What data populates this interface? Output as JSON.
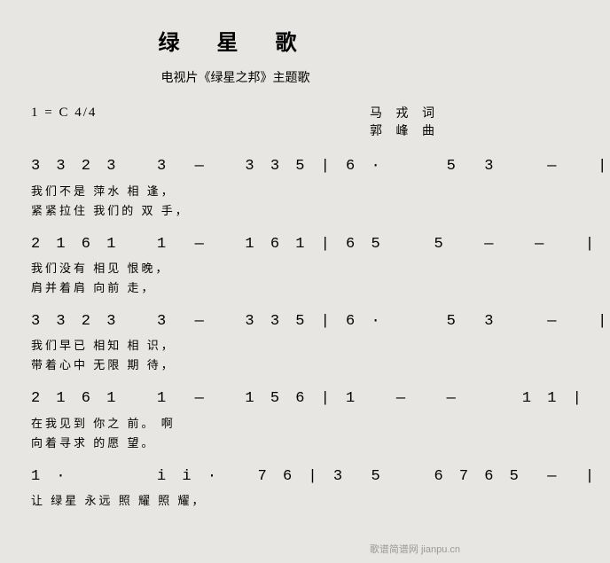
{
  "title": "绿 星 歌",
  "subtitle": "电视片《绿星之邦》主题歌",
  "keySig": "1 = C 4/4",
  "credits": {
    "lyricist": "马 戎 词",
    "composer": "郭 峰 曲"
  },
  "lines": [
    {
      "notation": "3 3 2 3   3  ―   3 3 5 | 6 ·     5  3    ―   |",
      "lyric1": "我们不是              萍水      相          逢，",
      "lyric2": "紧紧拉住              我们的    双          手，"
    },
    {
      "notation": "2 1 6 1   1  ―   1 6 1 | 6 5    5   ―   ―   |",
      "lyric1": "我们没有              相见      恨晚，",
      "lyric2": "肩并着肩              向前      走，"
    },
    {
      "notation": "3 3 2 3   3  ―   3 3 5 | 6 ·     5  3    ―   |",
      "lyric1": "我们早已              相知      相          识，",
      "lyric2": "带着心中              无限      期          待，"
    },
    {
      "notation": "2 1 6 1   1  ―   1 5 6 | 1   ―   ―     1 1 |",
      "lyric1": "在我见到              你之      前。           啊",
      "lyric2": "向着寻求              的愿      望。"
    },
    {
      "notation": "1 ·       i i ·   7 6 | 3  5    6 7 6 5  ―  |",
      "lyric1": "让        绿星   永远   照  耀   照  耀，",
      "lyric2": ""
    }
  ],
  "watermark": "歌谱简谱网 jianpu.cn"
}
